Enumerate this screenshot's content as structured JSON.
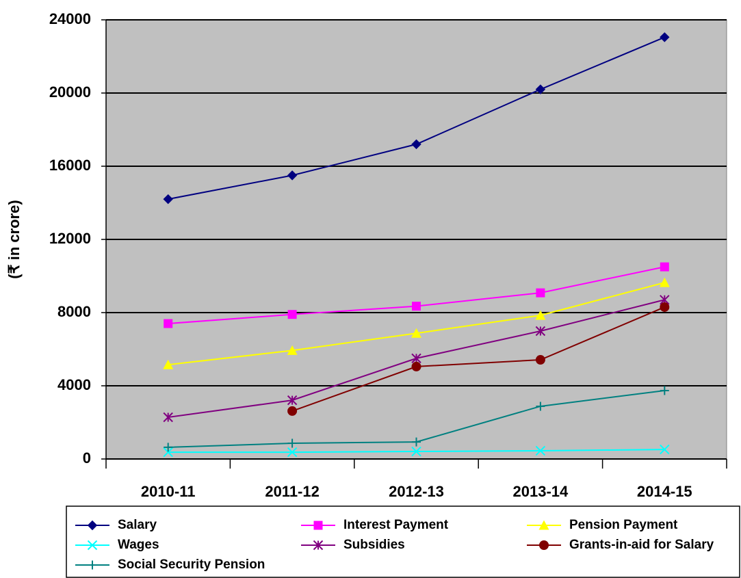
{
  "chart_data": {
    "type": "line",
    "y_label": "(₹ in crore)",
    "categories": [
      "2010-11",
      "2011-12",
      "2012-13",
      "2013-14",
      "2014-15"
    ],
    "series": [
      {
        "name": "Salary",
        "color": "#000080",
        "marker": "diamond",
        "values": [
          14200,
          15500,
          17200,
          20200,
          23050
        ]
      },
      {
        "name": "Interest Payment",
        "color": "#ff00ff",
        "marker": "square",
        "values": [
          7400,
          7900,
          8350,
          9080,
          10500
        ]
      },
      {
        "name": "Pension Payment",
        "color": "#ffff00",
        "marker": "triangle",
        "values": [
          5150,
          5930,
          6870,
          7850,
          9640
        ]
      },
      {
        "name": "Wages",
        "color": "#00ffff",
        "marker": "x",
        "values": [
          370,
          370,
          410,
          450,
          520
        ]
      },
      {
        "name": "Subsidies",
        "color": "#800080",
        "marker": "star",
        "values": [
          2280,
          3210,
          5500,
          6990,
          8700
        ]
      },
      {
        "name": "Grants-in-aid for Salary",
        "color": "#800000",
        "marker": "circle",
        "values": [
          null,
          2620,
          5050,
          5420,
          8300
        ]
      },
      {
        "name": "Social Security Pension",
        "color": "#008080",
        "marker": "plus",
        "values": [
          640,
          860,
          930,
          2880,
          3740
        ]
      }
    ],
    "ylim": [
      0,
      24000
    ],
    "yticks": [
      0,
      4000,
      8000,
      12000,
      16000,
      20000,
      24000
    ],
    "grid": true,
    "legend": "bottom"
  }
}
